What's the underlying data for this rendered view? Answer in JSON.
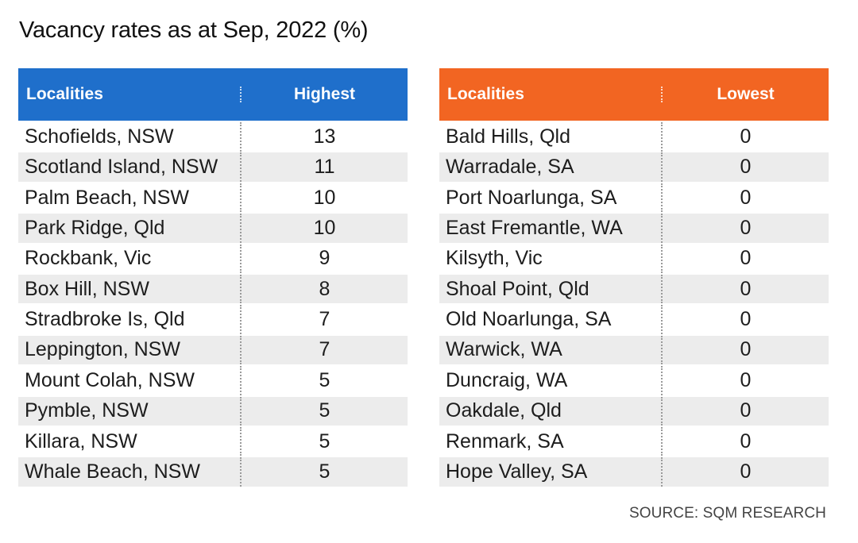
{
  "title": "Vacancy rates as at Sep, 2022 (%)",
  "source": "SOURCE: SQM RESEARCH",
  "colors": {
    "highest_header": "#1f6fcb",
    "lowest_header": "#f26522"
  },
  "chart_data": [
    {
      "type": "table",
      "columns": [
        "Localities",
        "Highest"
      ],
      "rows": [
        [
          "Schofields, NSW",
          "13"
        ],
        [
          "Scotland Island, NSW",
          "11"
        ],
        [
          "Palm Beach, NSW",
          "10"
        ],
        [
          "Park Ridge, Qld",
          "10"
        ],
        [
          "Rockbank, Vic",
          "9"
        ],
        [
          "Box Hill, NSW",
          "8"
        ],
        [
          "Stradbroke Is, Qld",
          "7"
        ],
        [
          "Leppington, NSW",
          "7"
        ],
        [
          "Mount Colah, NSW",
          "5"
        ],
        [
          "Pymble, NSW",
          "5"
        ],
        [
          "Killara, NSW",
          "5"
        ],
        [
          "Whale Beach, NSW",
          "5"
        ]
      ]
    },
    {
      "type": "table",
      "columns": [
        "Localities",
        "Lowest"
      ],
      "rows": [
        [
          "Bald Hills, Qld",
          "0"
        ],
        [
          "Warradale, SA",
          "0"
        ],
        [
          "Port Noarlunga, SA",
          "0"
        ],
        [
          "East Fremantle, WA",
          "0"
        ],
        [
          "Kilsyth, Vic",
          "0"
        ],
        [
          "Shoal Point, Qld",
          "0"
        ],
        [
          "Old Noarlunga, SA",
          "0"
        ],
        [
          "Warwick, WA",
          "0"
        ],
        [
          "Duncraig, WA",
          "0"
        ],
        [
          "Oakdale, Qld",
          "0"
        ],
        [
          "Renmark, SA",
          "0"
        ],
        [
          "Hope Valley, SA",
          "0"
        ]
      ]
    }
  ]
}
